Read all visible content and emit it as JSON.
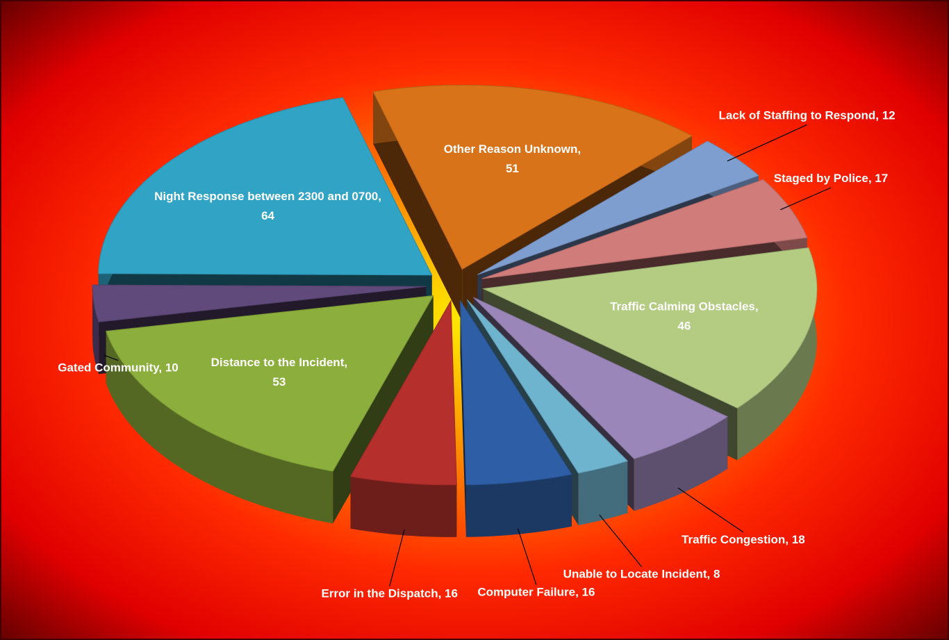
{
  "chart_data": {
    "type": "pie3d",
    "categories": [
      "Other Reason Unknown",
      "Lack of Staffing to Respond",
      "Staged by Police",
      "Traffic Calming Obstacles",
      "Traffic Congestion",
      "Unable to Locate Incident",
      "Computer Failure",
      "Error in the Dispatch",
      "Distance to the Incident",
      "Gated Community",
      "Night Response between 2300 and 0700"
    ],
    "values": [
      51,
      12,
      17,
      46,
      18,
      8,
      16,
      16,
      53,
      10,
      64
    ],
    "colors": [
      "#d9731a",
      "#7f9ed0",
      "#d07c7a",
      "#b3cc82",
      "#9a86b8",
      "#6fb4cf",
      "#2e5fa6",
      "#b5302c",
      "#8cae3c",
      "#604a7b",
      "#31a3c4"
    ]
  }
}
